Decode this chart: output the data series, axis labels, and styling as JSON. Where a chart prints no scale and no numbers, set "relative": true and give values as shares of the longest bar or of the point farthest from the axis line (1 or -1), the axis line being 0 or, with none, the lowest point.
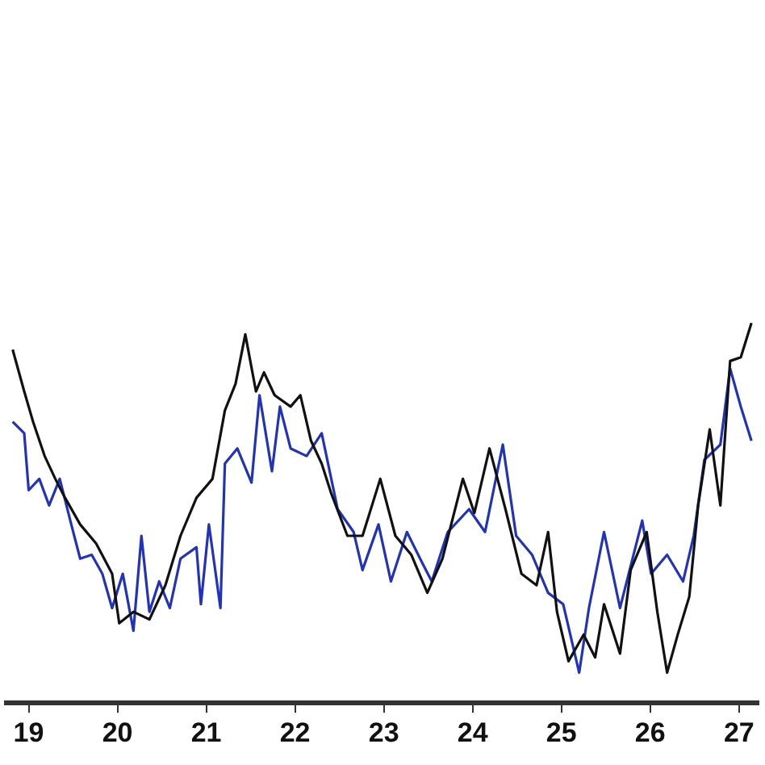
{
  "chart_data": {
    "type": "line",
    "relative": true,
    "xlim": [
      18.75,
      27.22
    ],
    "xticks": [
      19,
      20,
      21,
      22,
      23,
      24,
      25,
      26,
      27
    ],
    "grid": false,
    "legend": false,
    "marker": "none",
    "line_style": "solid",
    "series": [
      {
        "color": "#111111",
        "x": [
          18.82,
          18.95,
          19.05,
          19.18,
          19.3,
          19.41,
          19.58,
          19.76,
          19.94,
          20.02,
          20.18,
          20.36,
          20.54,
          20.71,
          20.89,
          21.07,
          21.21,
          21.33,
          21.44,
          21.56,
          21.65,
          21.77,
          21.95,
          22.06,
          22.18,
          22.3,
          22.41,
          22.59,
          22.76,
          22.96,
          23.13,
          23.31,
          23.49,
          23.66,
          23.89,
          24.02,
          24.19,
          24.37,
          24.55,
          24.72,
          24.85,
          24.95,
          25.08,
          25.25,
          25.38,
          25.48,
          25.66,
          25.78,
          25.96,
          26.08,
          26.19,
          26.31,
          26.44,
          26.54,
          26.67,
          26.79,
          26.9,
          27.02,
          27.14
        ],
        "values": [
          0.93,
          0.82,
          0.74,
          0.65,
          0.59,
          0.54,
          0.47,
          0.42,
          0.34,
          0.21,
          0.24,
          0.22,
          0.31,
          0.44,
          0.54,
          0.59,
          0.77,
          0.84,
          0.97,
          0.82,
          0.87,
          0.81,
          0.78,
          0.81,
          0.69,
          0.63,
          0.55,
          0.44,
          0.44,
          0.59,
          0.44,
          0.39,
          0.29,
          0.38,
          0.59,
          0.5,
          0.67,
          0.51,
          0.34,
          0.31,
          0.45,
          0.24,
          0.11,
          0.18,
          0.12,
          0.26,
          0.13,
          0.35,
          0.45,
          0.24,
          0.08,
          0.18,
          0.28,
          0.52,
          0.72,
          0.52,
          0.9,
          0.91,
          1.0
        ]
      },
      {
        "color": "#2233bb",
        "x": [
          18.82,
          18.95,
          19.0,
          19.12,
          19.23,
          19.35,
          19.48,
          19.58,
          19.71,
          19.83,
          19.94,
          20.06,
          20.18,
          20.27,
          20.36,
          20.47,
          20.59,
          20.71,
          20.89,
          20.94,
          21.03,
          21.16,
          21.21,
          21.35,
          21.51,
          21.6,
          21.74,
          21.83,
          21.95,
          22.13,
          22.3,
          22.48,
          22.66,
          22.76,
          22.94,
          23.08,
          23.26,
          23.43,
          23.54,
          23.72,
          23.96,
          24.14,
          24.34,
          24.49,
          24.67,
          24.85,
          25.02,
          25.2,
          25.31,
          25.48,
          25.66,
          25.91,
          26.01,
          26.19,
          26.37,
          26.49,
          26.61,
          26.79,
          26.9,
          27.02,
          27.14
        ],
        "values": [
          0.74,
          0.71,
          0.56,
          0.59,
          0.52,
          0.59,
          0.47,
          0.38,
          0.39,
          0.34,
          0.25,
          0.34,
          0.19,
          0.44,
          0.24,
          0.32,
          0.25,
          0.38,
          0.41,
          0.26,
          0.47,
          0.25,
          0.63,
          0.67,
          0.58,
          0.81,
          0.61,
          0.78,
          0.67,
          0.65,
          0.71,
          0.51,
          0.45,
          0.35,
          0.47,
          0.32,
          0.45,
          0.37,
          0.32,
          0.45,
          0.51,
          0.45,
          0.68,
          0.44,
          0.39,
          0.29,
          0.26,
          0.08,
          0.25,
          0.45,
          0.25,
          0.48,
          0.34,
          0.39,
          0.32,
          0.44,
          0.64,
          0.68,
          0.88,
          0.78,
          0.69
        ]
      }
    ]
  }
}
